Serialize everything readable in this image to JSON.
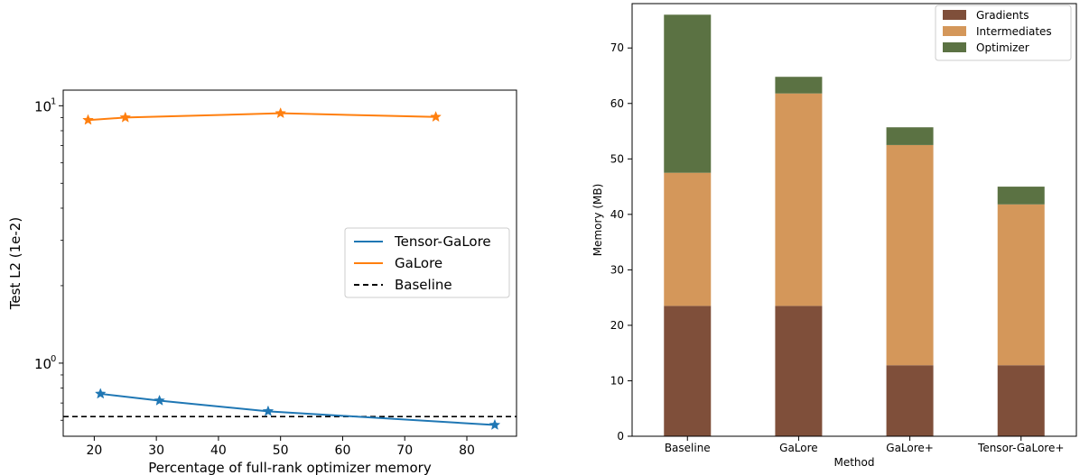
{
  "chart_data": [
    {
      "type": "line",
      "xlabel": "Percentage of full-rank optimizer memory",
      "ylabel": "Test L2 (1e-2)",
      "xlim": [
        15,
        88
      ],
      "ylim": [
        0.52,
        11.5
      ],
      "yscale": "log",
      "xticks": [
        20,
        30,
        40,
        50,
        60,
        70,
        80
      ],
      "yticks": [
        {
          "value": 1,
          "label": "10",
          "exp": "0"
        },
        {
          "value": 10,
          "label": "10",
          "exp": "1"
        }
      ],
      "grid": false,
      "legend_position": "center-right",
      "series": [
        {
          "name": "Tensor-GaLore",
          "color": "#1f77b4",
          "marker": "star",
          "x": [
            21,
            30.5,
            48,
            84.5
          ],
          "y": [
            0.76,
            0.715,
            0.65,
            0.575
          ]
        },
        {
          "name": "GaLore",
          "color": "#ff7f0e",
          "marker": "star",
          "x": [
            19,
            25,
            50,
            75
          ],
          "y": [
            8.8,
            9.0,
            9.35,
            9.05
          ]
        },
        {
          "name": "Baseline",
          "color": "#000000",
          "style": "dashed",
          "y": 0.62
        }
      ]
    },
    {
      "type": "bar",
      "stacked": true,
      "xlabel": "Method",
      "ylabel": "Memory (MB)",
      "ylim": [
        0,
        78
      ],
      "yticks": [
        0,
        10,
        20,
        30,
        40,
        50,
        60,
        70
      ],
      "categories": [
        "Baseline",
        "GaLore",
        "GaLore+",
        "Tensor-GaLore+"
      ],
      "grid": false,
      "legend_position": "top-right",
      "series": [
        {
          "name": "Gradients",
          "color": "#7f4f3a",
          "values": [
            23.5,
            23.5,
            12.8,
            12.8
          ]
        },
        {
          "name": "Intermediates",
          "color": "#d4975a",
          "values": [
            24.0,
            38.3,
            39.7,
            29.0
          ]
        },
        {
          "name": "Optimizer",
          "color": "#5b7243",
          "values": [
            28.5,
            3.0,
            3.2,
            3.2
          ]
        }
      ]
    }
  ]
}
